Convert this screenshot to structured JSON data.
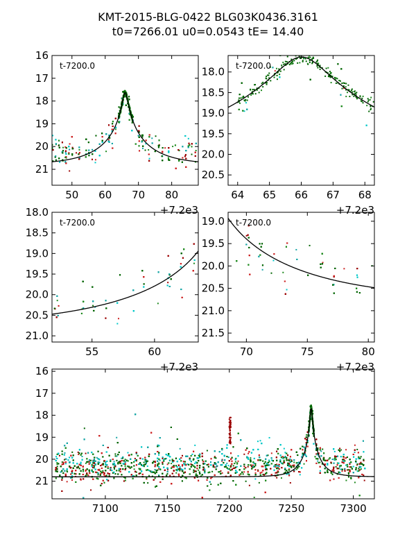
{
  "title": {
    "line1": "KMT-2015-BLG-0422 BLG03K0436.3161",
    "line2": "t0=7266.01 u0=0.0543 tE=  14.40"
  },
  "colors": {
    "model": "#000000",
    "dark_green": "#006400",
    "green": "#1f8a1f",
    "dark_red": "#9b0000",
    "red": "#cc2222",
    "teal": "#15a5a5",
    "cyan": "#00c8c8"
  },
  "model": {
    "t0": 7266.01,
    "u0": 0.0543,
    "tE": 14.4,
    "baseline_mag": 20.8
  },
  "chart_data": [
    {
      "id": "top-left",
      "type": "scatter",
      "panel_label": "t-7200.0",
      "xlim": [
        44,
        88
      ],
      "ylim": [
        16,
        21.7
      ],
      "y_inverted": true,
      "xticks": [
        50,
        60,
        70,
        80
      ],
      "yticks": [
        16,
        17,
        18,
        19,
        20,
        21
      ],
      "x_offset_label": "+7.2e3",
      "time_offset": 7200
    },
    {
      "id": "top-right",
      "type": "scatter",
      "panel_label": "t-7200.0",
      "xlim": [
        63.7,
        68.3
      ],
      "ylim": [
        17.6,
        20.75
      ],
      "y_inverted": true,
      "xticks": [
        64,
        65,
        66,
        67,
        68
      ],
      "yticks": [
        18.0,
        18.5,
        19.0,
        19.5,
        20.0,
        20.5
      ],
      "x_offset_label": "+7.2e3",
      "time_offset": 7200
    },
    {
      "id": "mid-left",
      "type": "scatter",
      "panel_label": "t-7200.0",
      "xlim": [
        51.8,
        63.5
      ],
      "ylim": [
        18.0,
        21.15
      ],
      "y_inverted": true,
      "xticks": [
        55,
        60
      ],
      "yticks": [
        18.0,
        18.5,
        19.0,
        19.5,
        20.0,
        20.5,
        21.0
      ],
      "x_offset_label": "+7.2e3",
      "time_offset": 7200
    },
    {
      "id": "mid-right",
      "type": "scatter",
      "panel_label": "t-7200.0",
      "xlim": [
        68.5,
        80.5
      ],
      "ylim": [
        18.8,
        21.7
      ],
      "y_inverted": true,
      "xticks": [
        70,
        75,
        80
      ],
      "yticks": [
        19.0,
        19.5,
        20.0,
        20.5,
        21.0,
        21.5
      ],
      "x_offset_label": "+7.2e3",
      "time_offset": 7200
    },
    {
      "id": "bottom",
      "type": "scatter",
      "panel_label": "",
      "xlim": [
        7057,
        7317
      ],
      "ylim": [
        15.9,
        21.8
      ],
      "y_inverted": true,
      "xticks": [
        7100,
        7150,
        7200,
        7250,
        7300
      ],
      "yticks": [
        16,
        17,
        18,
        19,
        20,
        21
      ],
      "x_offset_label": "",
      "time_offset": 0
    }
  ]
}
